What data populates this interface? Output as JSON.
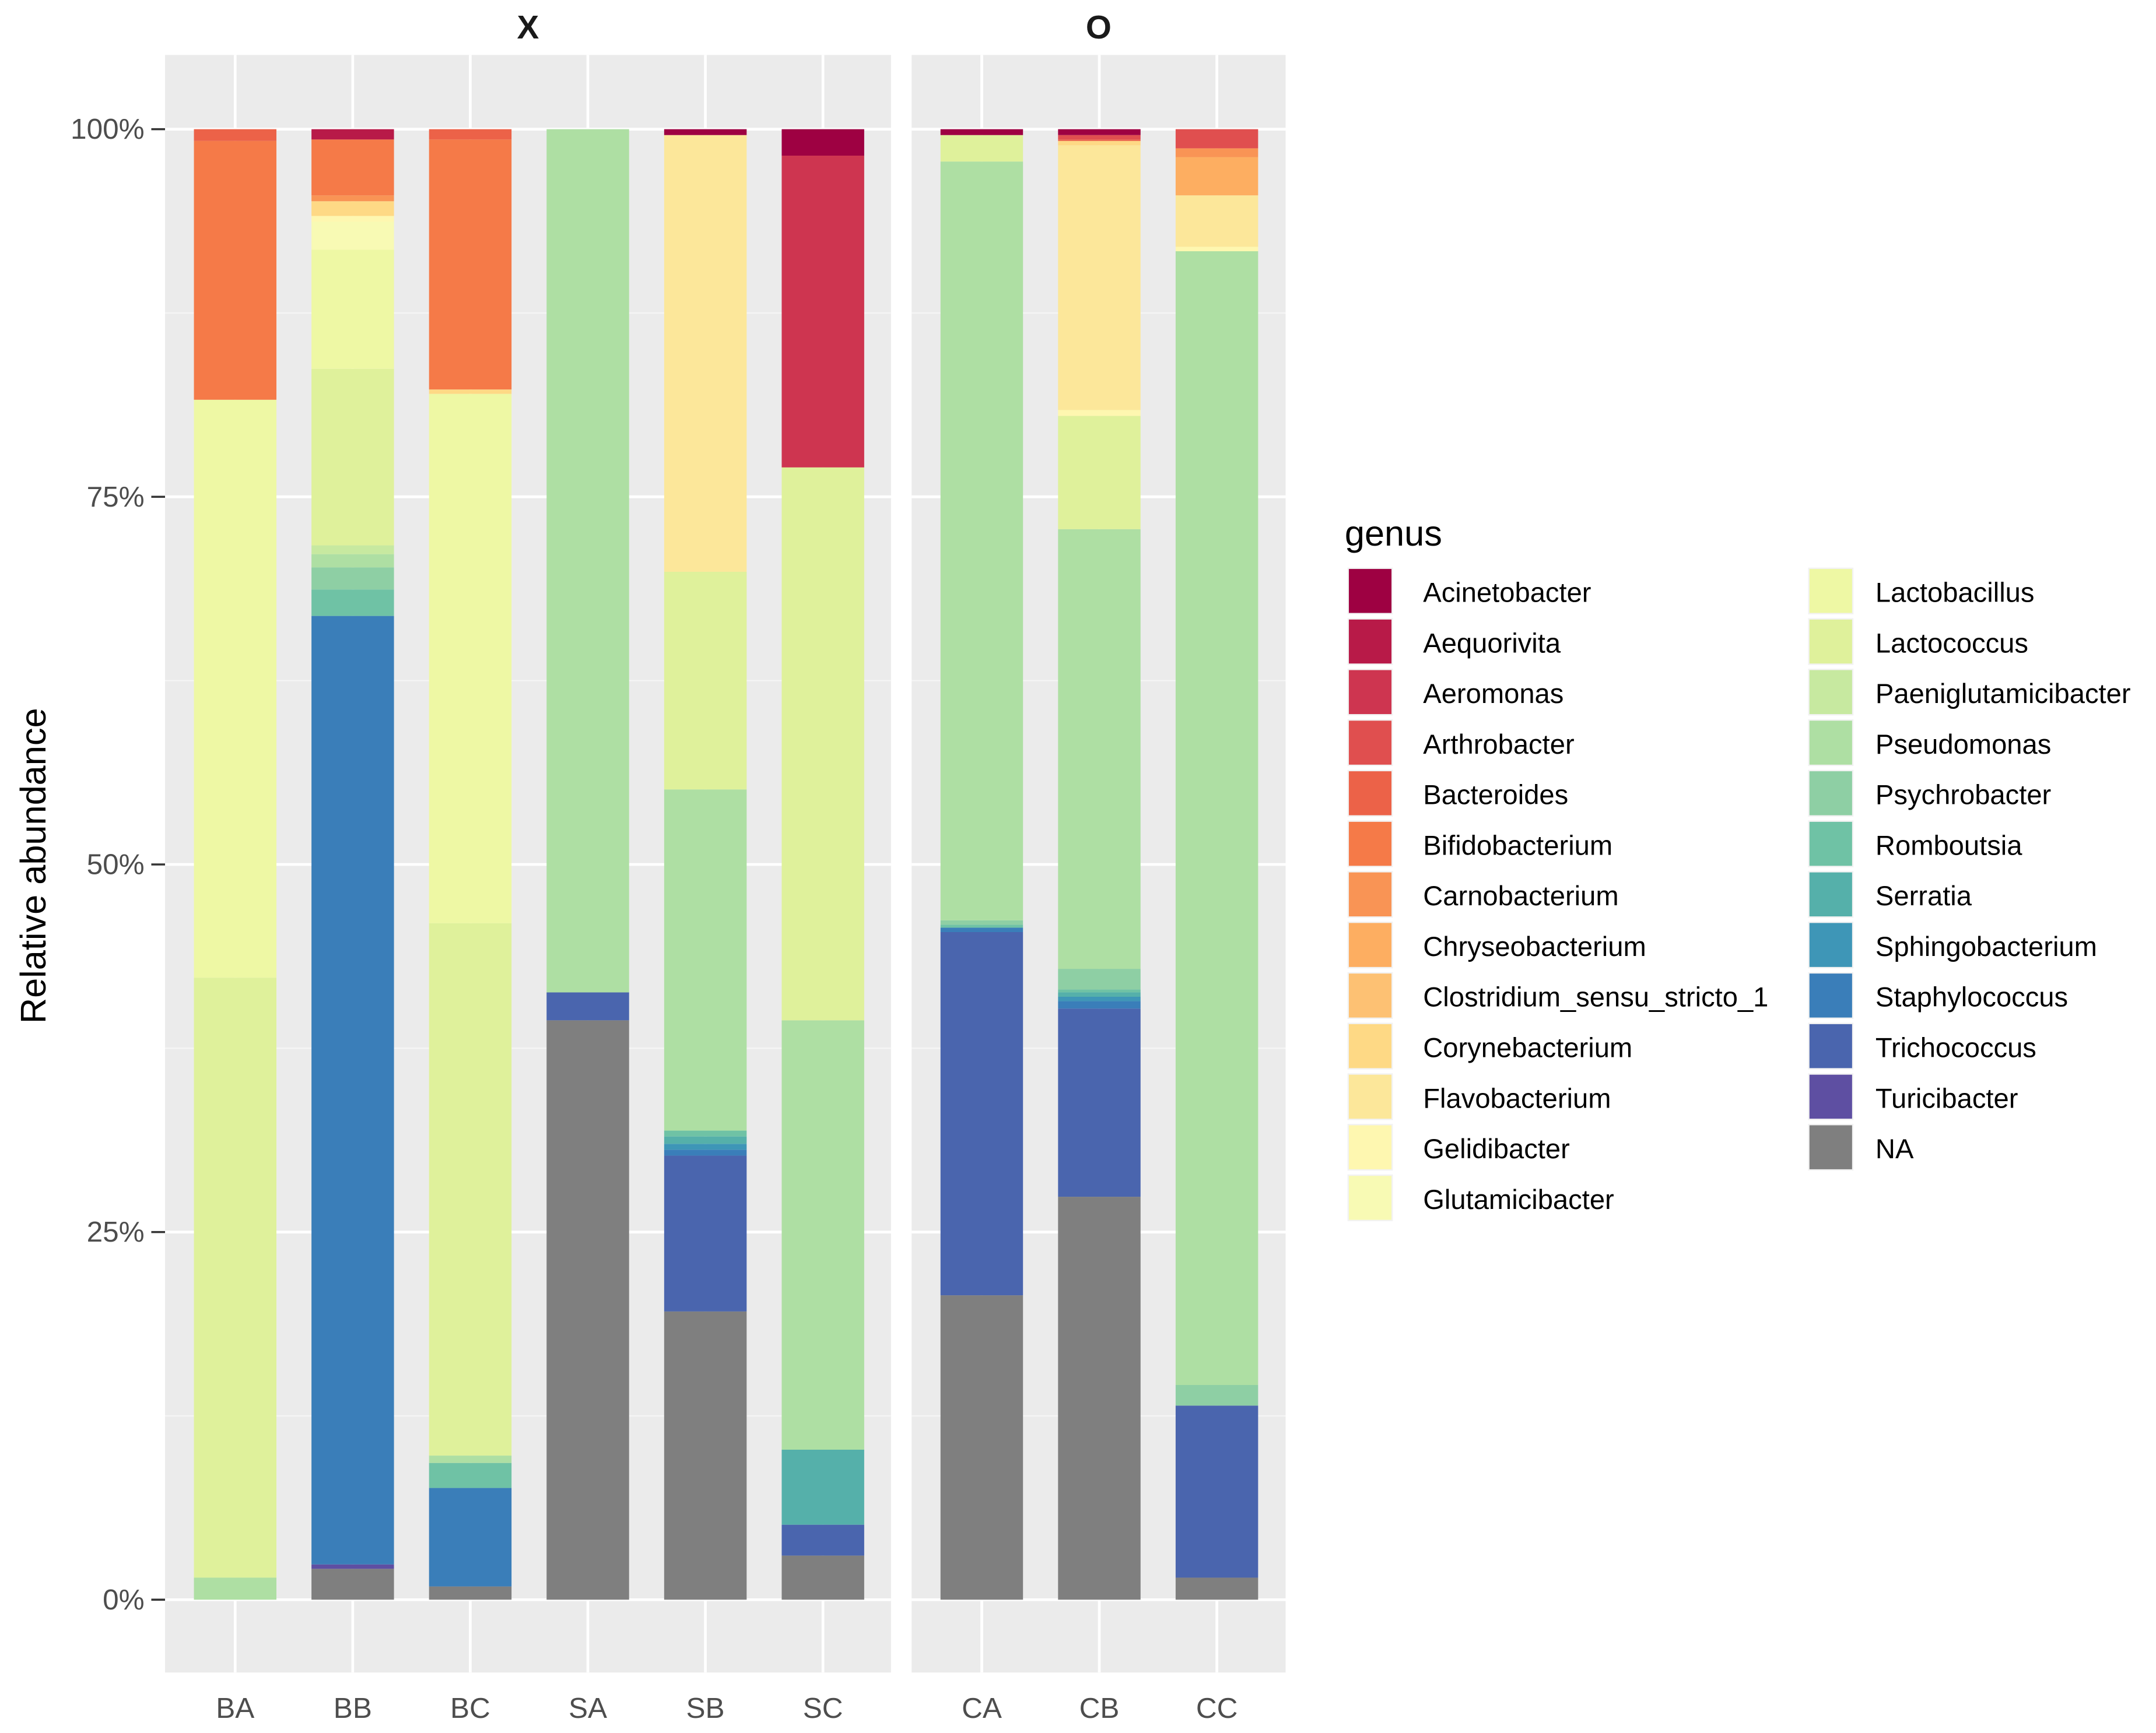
{
  "chart_data": {
    "type": "bar",
    "stacked": true,
    "ylabel": "Relative abundance",
    "xlabel": "",
    "ylim": [
      0,
      100
    ],
    "yticks": [
      "0%",
      "25%",
      "50%",
      "75%",
      "100%"
    ],
    "yvalues": [
      0,
      25,
      50,
      75,
      100
    ],
    "legend_title": "genus",
    "legend_position": "right",
    "genera": [
      {
        "name": "Acinetobacter",
        "color": "#9E0142"
      },
      {
        "name": "Aequorivita",
        "color": "#B81A48"
      },
      {
        "name": "Aeromonas",
        "color": "#CE3550"
      },
      {
        "name": "Arthrobacter",
        "color": "#E04F4F"
      },
      {
        "name": "Bacteroides",
        "color": "#EC6248"
      },
      {
        "name": "Bifidobacterium",
        "color": "#F57A48"
      },
      {
        "name": "Carnobacterium",
        "color": "#F99455"
      },
      {
        "name": "Chryseobacterium",
        "color": "#FDAE61"
      },
      {
        "name": "Clostridium_sensu_stricto_1",
        "color": "#FDC173"
      },
      {
        "name": "Corynebacterium",
        "color": "#FED985"
      },
      {
        "name": "Flavobacterium",
        "color": "#FCE79A"
      },
      {
        "name": "Gelidibacter",
        "color": "#FEF7B0"
      },
      {
        "name": "Glutamicibacter",
        "color": "#F8FAB4"
      },
      {
        "name": "Lactobacillus",
        "color": "#EEF8A4"
      },
      {
        "name": "Lactococcus",
        "color": "#DFF19B"
      },
      {
        "name": "Paeniglutamicibacter",
        "color": "#C7E9A0"
      },
      {
        "name": "Pseudomonas",
        "color": "#AEDFA3"
      },
      {
        "name": "Psychrobacter",
        "color": "#8ECFA4"
      },
      {
        "name": "Romboutsia",
        "color": "#6FC2A5"
      },
      {
        "name": "Serratia",
        "color": "#55B0AA"
      },
      {
        "name": "Sphingobacterium",
        "color": "#3E96B7"
      },
      {
        "name": "Staphylococcus",
        "color": "#3A7EB9"
      },
      {
        "name": "Trichococcus",
        "color": "#4A65AE"
      },
      {
        "name": "Turicibacter",
        "color": "#5E4FA2"
      },
      {
        "name": "NA",
        "color": "#7F7F7F"
      }
    ],
    "panels": [
      {
        "label": "X",
        "samples": [
          {
            "name": "BA",
            "segments": [
              [
                "Pseudomonas",
                1.5
              ],
              [
                "Lactococcus",
                40.8
              ],
              [
                "Lactobacillus",
                39.3
              ],
              [
                "Bifidobacterium",
                17.6
              ],
              [
                "Bacteroides",
                0.8
              ]
            ]
          },
          {
            "name": "BB",
            "segments": [
              [
                "NA",
                2.1
              ],
              [
                "Turicibacter",
                0.3
              ],
              [
                "Staphylococcus",
                64.5
              ],
              [
                "Romboutsia",
                1.8
              ],
              [
                "Psychrobacter",
                1.5
              ],
              [
                "Pseudomonas",
                0.9
              ],
              [
                "Paeniglutamicibacter",
                0.6
              ],
              [
                "Lactococcus",
                12.0
              ],
              [
                "Lactobacillus",
                8.1
              ],
              [
                "Glutamicibacter",
                1.9
              ],
              [
                "Gelidibacter",
                0.4
              ],
              [
                "Corynebacterium",
                1.0
              ],
              [
                "Carnobacterium",
                0.4
              ],
              [
                "Bifidobacterium",
                3.8
              ],
              [
                "Aequorivita",
                0.7
              ]
            ]
          },
          {
            "name": "BC",
            "segments": [
              [
                "NA",
                0.9
              ],
              [
                "Staphylococcus",
                6.7
              ],
              [
                "Romboutsia",
                1.7
              ],
              [
                "Pseudomonas",
                0.5
              ],
              [
                "Lactococcus",
                36.2
              ],
              [
                "Lactobacillus",
                36.0
              ],
              [
                "Corynebacterium",
                0.3
              ],
              [
                "Bifidobacterium",
                17.0
              ],
              [
                "Bacteroides",
                0.7
              ]
            ]
          },
          {
            "name": "SA",
            "segments": [
              [
                "NA",
                39.4
              ],
              [
                "Trichococcus",
                1.9
              ],
              [
                "Pseudomonas",
                58.7
              ]
            ]
          },
          {
            "name": "SB",
            "segments": [
              [
                "NA",
                19.6
              ],
              [
                "Trichococcus",
                10.6
              ],
              [
                "Staphylococcus",
                0.4
              ],
              [
                "Sphingobacterium",
                0.4
              ],
              [
                "Serratia",
                0.5
              ],
              [
                "Romboutsia",
                0.4
              ],
              [
                "Pseudomonas",
                23.2
              ],
              [
                "Lactococcus",
                14.8
              ],
              [
                "Flavobacterium",
                29.7
              ],
              [
                "Acinetobacter",
                0.4
              ]
            ]
          },
          {
            "name": "SC",
            "segments": [
              [
                "NA",
                3.0
              ],
              [
                "Trichococcus",
                2.1
              ],
              [
                "Serratia",
                5.1
              ],
              [
                "Pseudomonas",
                29.2
              ],
              [
                "Lactococcus",
                37.6
              ],
              [
                "Aeromonas",
                21.2
              ],
              [
                "Acinetobacter",
                1.8
              ]
            ]
          }
        ]
      },
      {
        "label": "O",
        "samples": [
          {
            "name": "CA",
            "segments": [
              [
                "NA",
                20.7
              ],
              [
                "Trichococcus",
                24.7
              ],
              [
                "Staphylococcus",
                0.3
              ],
              [
                "Romboutsia",
                0.2
              ],
              [
                "Psychrobacter",
                0.3
              ],
              [
                "Pseudomonas",
                51.6
              ],
              [
                "Lactococcus",
                1.8
              ],
              [
                "Acinetobacter",
                0.4
              ]
            ]
          },
          {
            "name": "CB",
            "segments": [
              [
                "NA",
                27.4
              ],
              [
                "Trichococcus",
                12.8
              ],
              [
                "Staphylococcus",
                0.5
              ],
              [
                "Sphingobacterium",
                0.3
              ],
              [
                "Serratia",
                0.3
              ],
              [
                "Romboutsia",
                0.2
              ],
              [
                "Psychrobacter",
                1.4
              ],
              [
                "Pseudomonas",
                29.9
              ],
              [
                "Lactococcus",
                7.7
              ],
              [
                "Gelidibacter",
                0.4
              ],
              [
                "Flavobacterium",
                18.0
              ],
              [
                "Corynebacterium",
                0.3
              ],
              [
                "Bacteroides",
                0.1
              ],
              [
                "Arthrobacter",
                0.3
              ],
              [
                "Acinetobacter",
                0.4
              ]
            ]
          },
          {
            "name": "CC",
            "segments": [
              [
                "NA",
                1.5
              ],
              [
                "Trichococcus",
                11.7
              ],
              [
                "Psychrobacter",
                1.4
              ],
              [
                "Pseudomonas",
                77.1
              ],
              [
                "Gelidibacter",
                0.3
              ],
              [
                "Flavobacterium",
                3.5
              ],
              [
                "Chryseobacterium",
                2.6
              ],
              [
                "Carnobacterium",
                0.6
              ],
              [
                "Arthrobacter",
                1.3
              ]
            ]
          }
        ]
      }
    ]
  }
}
